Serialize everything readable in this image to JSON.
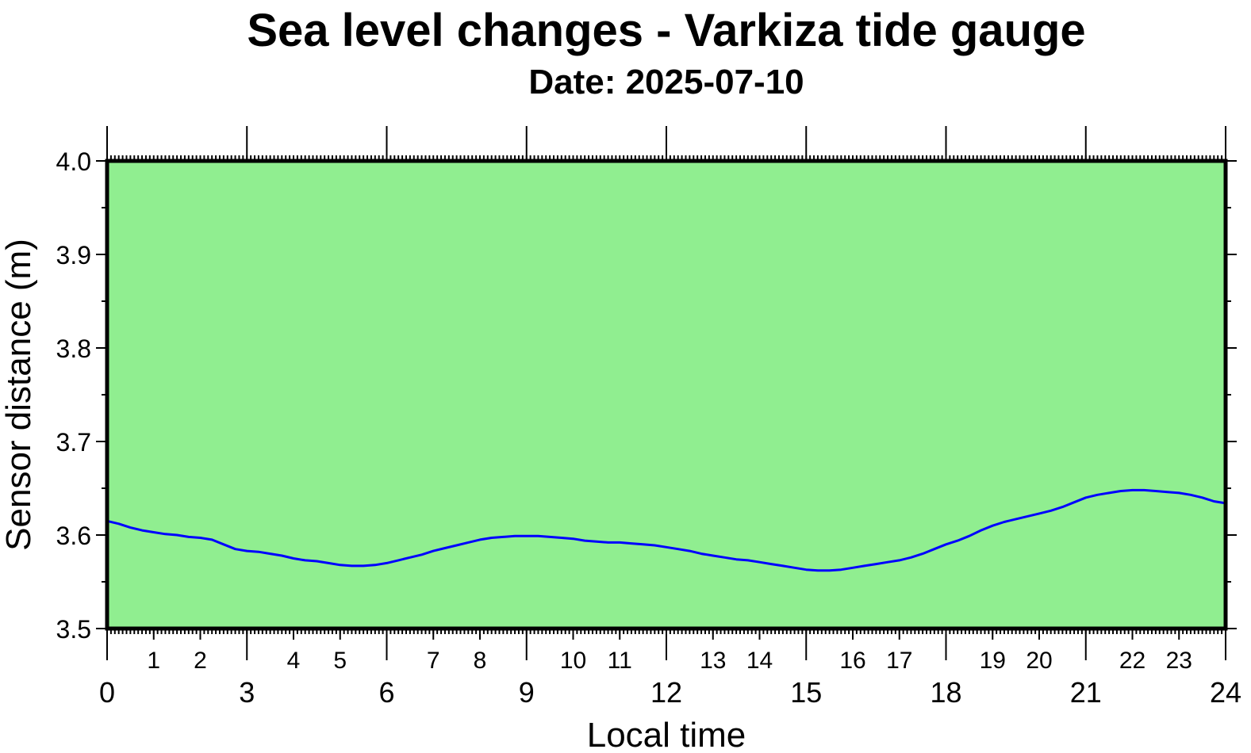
{
  "chart_data": {
    "type": "line",
    "title": "Sea level changes - Varkiza tide gauge",
    "subtitle": "Date: 2025-07-10",
    "xlabel": "Local time",
    "ylabel": "Sensor distance (m)",
    "xlim": [
      0,
      24
    ],
    "ylim": [
      3.5,
      4.0
    ],
    "x_major_ticks": [
      "0",
      "3",
      "6",
      "9",
      "12",
      "15",
      "18",
      "21",
      "24"
    ],
    "x_minor_labels": [
      "1",
      "2",
      "4",
      "5",
      "7",
      "8",
      "10",
      "11",
      "13",
      "14",
      "16",
      "17",
      "19",
      "20",
      "22",
      "23"
    ],
    "y_ticks": [
      "3.5",
      "3.6",
      "3.7",
      "3.8",
      "3.9",
      "4.0"
    ],
    "grid": false,
    "colors": {
      "plot_background": "#90ee90",
      "series_line": "#0000ff",
      "frame": "#000000"
    },
    "series": [
      {
        "x": [
          0.0,
          0.25,
          0.5,
          0.75,
          1.0,
          1.25,
          1.5,
          1.75,
          2.0,
          2.25,
          2.5,
          2.75,
          3.0,
          3.25,
          3.5,
          3.75,
          4.0,
          4.25,
          4.5,
          4.75,
          5.0,
          5.25,
          5.5,
          5.75,
          6.0,
          6.25,
          6.5,
          6.75,
          7.0,
          7.25,
          7.5,
          7.75,
          8.0,
          8.25,
          8.5,
          8.75,
          9.0,
          9.25,
          9.5,
          9.75,
          10.0,
          10.25,
          10.5,
          10.75,
          11.0,
          11.25,
          11.5,
          11.75,
          12.0,
          12.25,
          12.5,
          12.75,
          13.0,
          13.25,
          13.5,
          13.75,
          14.0,
          14.25,
          14.5,
          14.75,
          15.0,
          15.25,
          15.5,
          15.75,
          16.0,
          16.25,
          16.5,
          16.75,
          17.0,
          17.25,
          17.5,
          17.75,
          18.0,
          18.25,
          18.5,
          18.75,
          19.0,
          19.25,
          19.5,
          19.75,
          20.0,
          20.25,
          20.5,
          20.75,
          21.0,
          21.25,
          21.5,
          21.75,
          22.0,
          22.25,
          22.5,
          22.75,
          23.0,
          23.25,
          23.5,
          23.75,
          24.0
        ],
        "values": [
          3.615,
          3.612,
          3.608,
          3.605,
          3.603,
          3.601,
          3.6,
          3.598,
          3.597,
          3.595,
          3.59,
          3.585,
          3.583,
          3.582,
          3.58,
          3.578,
          3.575,
          3.573,
          3.572,
          3.57,
          3.568,
          3.567,
          3.567,
          3.568,
          3.57,
          3.573,
          3.576,
          3.579,
          3.583,
          3.586,
          3.589,
          3.592,
          3.595,
          3.597,
          3.598,
          3.599,
          3.599,
          3.599,
          3.598,
          3.597,
          3.596,
          3.594,
          3.593,
          3.592,
          3.592,
          3.591,
          3.59,
          3.589,
          3.587,
          3.585,
          3.583,
          3.58,
          3.578,
          3.576,
          3.574,
          3.573,
          3.571,
          3.569,
          3.567,
          3.565,
          3.563,
          3.562,
          3.562,
          3.563,
          3.565,
          3.567,
          3.569,
          3.571,
          3.573,
          3.576,
          3.58,
          3.585,
          3.59,
          3.594,
          3.599,
          3.605,
          3.61,
          3.614,
          3.617,
          3.62,
          3.623,
          3.626,
          3.63,
          3.635,
          3.64,
          3.643,
          3.645,
          3.647,
          3.648,
          3.648,
          3.647,
          3.646,
          3.645,
          3.643,
          3.64,
          3.636,
          3.634
        ]
      }
    ]
  }
}
